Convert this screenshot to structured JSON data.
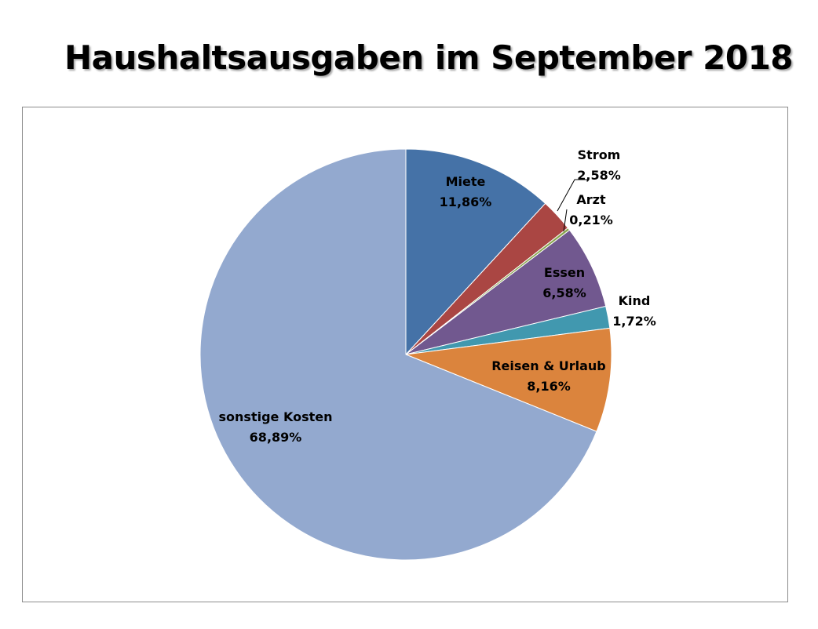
{
  "title": "Haushaltsausgaben im September 2018",
  "chart_data": {
    "type": "pie",
    "title": "Haushaltsausgaben im September 2018",
    "start_angle_deg": 0,
    "direction": "clockwise",
    "legend": "none",
    "slices": [
      {
        "name": "Miete",
        "value": 11.86,
        "label": "11,86%",
        "color": "#4572A7"
      },
      {
        "name": "Strom",
        "value": 2.58,
        "label": "2,58%",
        "color": "#AA4643"
      },
      {
        "name": "Arzt",
        "value": 0.21,
        "label": "0,21%",
        "color": "#89A54E"
      },
      {
        "name": "Essen",
        "value": 6.58,
        "label": "6,58%",
        "color": "#71588F"
      },
      {
        "name": "Kind",
        "value": 1.72,
        "label": "1,72%",
        "color": "#4198AF"
      },
      {
        "name": "Reisen & Urlaub",
        "value": 8.16,
        "label": "8,16%",
        "color": "#DB843D"
      },
      {
        "name": "sonstige Kosten",
        "value": 68.89,
        "label": "68,89%",
        "color": "#93A9CF"
      }
    ]
  }
}
